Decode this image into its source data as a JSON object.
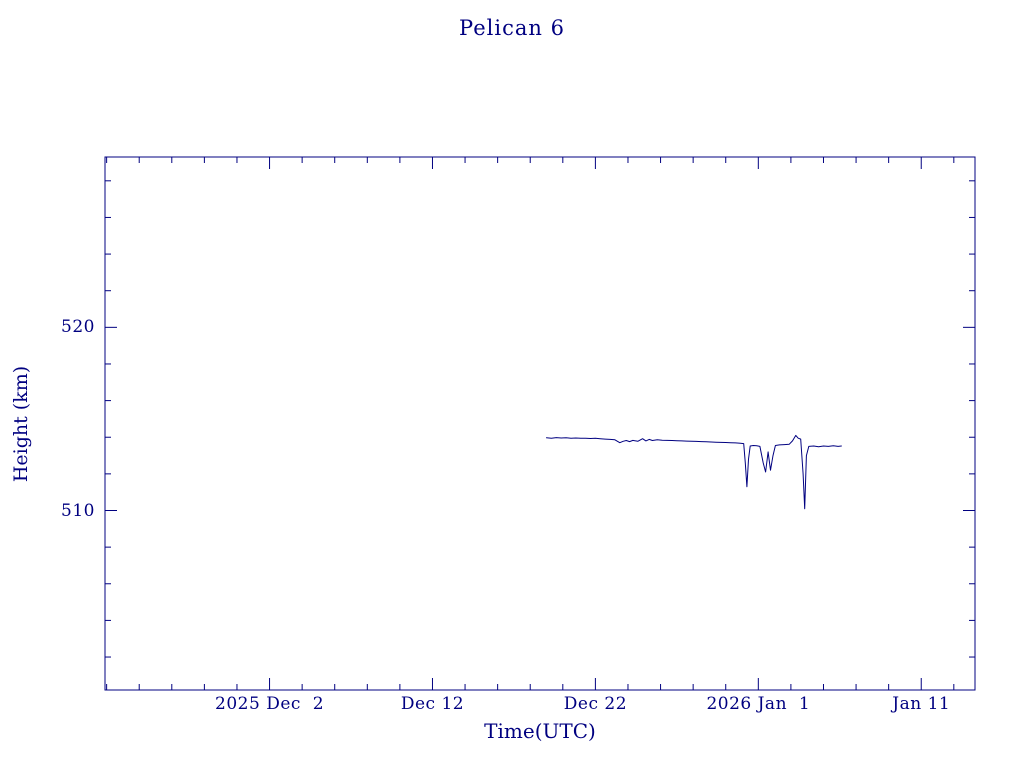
{
  "title": "Pelican 6",
  "colors": {
    "axis": "#000080",
    "text": "#000080",
    "line": "#000080",
    "background": "#ffffff"
  },
  "chart_data": {
    "type": "line",
    "title": "Pelican 6",
    "xlabel": "Time(UTC)",
    "ylabel": "Height (km)",
    "x_unit": "days since 2025-12-02 00:00 UTC",
    "xlim": [
      -10.1,
      43.3
    ],
    "ylim": [
      500.2,
      529.3
    ],
    "grid": false,
    "legend": "none",
    "x_major_ticks": [
      {
        "day": 0,
        "label": "2025 Dec  2"
      },
      {
        "day": 10,
        "label": "Dec 12"
      },
      {
        "day": 20,
        "label": "Dec 22"
      },
      {
        "day": 30,
        "label": "2026 Jan  1"
      },
      {
        "day": 40,
        "label": "Jan 11"
      }
    ],
    "x_minor_step": 2,
    "y_major_ticks": [
      {
        "value": 510,
        "label": "510"
      },
      {
        "value": 520,
        "label": "520"
      }
    ],
    "y_minor_step": 2,
    "series": [
      {
        "name": "height-km",
        "color": "#000080",
        "points": [
          [
            17.0,
            513.97
          ],
          [
            17.3,
            513.95
          ],
          [
            17.6,
            513.98
          ],
          [
            17.9,
            513.96
          ],
          [
            18.2,
            513.97
          ],
          [
            18.5,
            513.95
          ],
          [
            18.8,
            513.96
          ],
          [
            19.1,
            513.94
          ],
          [
            19.4,
            513.95
          ],
          [
            19.7,
            513.93
          ],
          [
            20.0,
            513.94
          ],
          [
            20.3,
            513.92
          ],
          [
            20.6,
            513.9
          ],
          [
            20.9,
            513.88
          ],
          [
            21.2,
            513.86
          ],
          [
            21.5,
            513.7
          ],
          [
            21.7,
            513.78
          ],
          [
            21.9,
            513.82
          ],
          [
            22.1,
            513.76
          ],
          [
            22.3,
            513.83
          ],
          [
            22.6,
            513.78
          ],
          [
            22.9,
            513.92
          ],
          [
            23.1,
            513.8
          ],
          [
            23.3,
            513.88
          ],
          [
            23.5,
            513.82
          ],
          [
            23.8,
            513.86
          ],
          [
            24.1,
            513.84
          ],
          [
            24.4,
            513.83
          ],
          [
            24.7,
            513.82
          ],
          [
            25.0,
            513.81
          ],
          [
            25.3,
            513.8
          ],
          [
            25.6,
            513.79
          ],
          [
            25.9,
            513.78
          ],
          [
            26.2,
            513.77
          ],
          [
            26.5,
            513.76
          ],
          [
            26.8,
            513.75
          ],
          [
            27.1,
            513.74
          ],
          [
            27.4,
            513.73
          ],
          [
            27.7,
            513.72
          ],
          [
            28.0,
            513.71
          ],
          [
            28.3,
            513.7
          ],
          [
            28.6,
            513.69
          ],
          [
            28.9,
            513.67
          ],
          [
            29.1,
            513.65
          ],
          [
            29.2,
            512.6
          ],
          [
            29.3,
            511.3
          ],
          [
            29.4,
            512.8
          ],
          [
            29.5,
            513.52
          ],
          [
            29.7,
            513.55
          ],
          [
            29.9,
            513.53
          ],
          [
            30.1,
            513.5
          ],
          [
            30.3,
            512.6
          ],
          [
            30.45,
            512.1
          ],
          [
            30.6,
            513.2
          ],
          [
            30.75,
            512.2
          ],
          [
            30.9,
            513.0
          ],
          [
            31.05,
            513.55
          ],
          [
            31.3,
            513.58
          ],
          [
            31.6,
            513.6
          ],
          [
            31.9,
            513.62
          ],
          [
            32.1,
            513.8
          ],
          [
            32.3,
            514.1
          ],
          [
            32.45,
            513.95
          ],
          [
            32.6,
            513.9
          ],
          [
            32.75,
            512.0
          ],
          [
            32.85,
            510.1
          ],
          [
            32.95,
            513.0
          ],
          [
            33.1,
            513.5
          ],
          [
            33.4,
            513.52
          ],
          [
            33.7,
            513.48
          ],
          [
            34.0,
            513.52
          ],
          [
            34.3,
            513.5
          ],
          [
            34.6,
            513.53
          ],
          [
            34.9,
            513.5
          ],
          [
            35.1,
            513.52
          ]
        ]
      }
    ]
  }
}
